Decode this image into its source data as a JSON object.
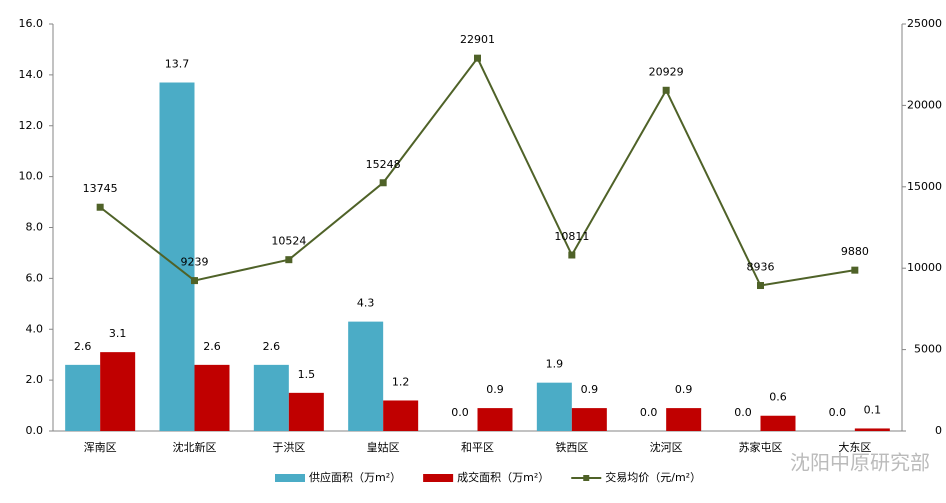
{
  "chart_data": {
    "type": "bar",
    "categories": [
      "浑南区",
      "沈北新区",
      "于洪区",
      "皇姑区",
      "和平区",
      "铁西区",
      "沈河区",
      "苏家屯区",
      "大东区"
    ],
    "series": [
      {
        "name": "供应面积（万m²）",
        "type": "bar",
        "color": "#4bacc6",
        "values": [
          2.6,
          13.7,
          2.6,
          4.3,
          0,
          1.9,
          0,
          0,
          0
        ],
        "value_labels": [
          "2.6",
          "13.7",
          "2.6",
          "4.3",
          "0.0",
          "1.9",
          "0.0",
          "0.0",
          "0.0"
        ]
      },
      {
        "name": "成交面积（万m²）",
        "type": "bar",
        "color": "#c00000",
        "values": [
          3.1,
          2.6,
          1.5,
          1.2,
          0.9,
          0.9,
          0.9,
          0.6,
          0.1
        ],
        "value_labels": [
          "3.1",
          "2.6",
          "1.5",
          "1.2",
          "0.9",
          "0.9",
          "0.9",
          "0.6",
          "0.1"
        ]
      },
      {
        "name": "交易均价（元/m²）",
        "type": "line",
        "axis": "y2",
        "color": "#4f6228",
        "values": [
          13745,
          9239,
          10524,
          15248,
          22901,
          10811,
          20929,
          8936,
          9880
        ]
      }
    ],
    "ylim": [
      0,
      16
    ],
    "yticks": [
      {
        "value": 0,
        "label": "0.0"
      },
      {
        "value": 2,
        "label": "2.0"
      },
      {
        "value": 4,
        "label": "4.0"
      },
      {
        "value": 6,
        "label": "6.0"
      },
      {
        "value": 8,
        "label": "8.0"
      },
      {
        "value": 10,
        "label": "10.0"
      },
      {
        "value": 12,
        "label": "12.0"
      },
      {
        "value": 14,
        "label": "14.0"
      },
      {
        "value": 16,
        "label": "16.0"
      }
    ],
    "y2lim": [
      0,
      25000
    ],
    "y2ticks": [
      0,
      5000,
      10000,
      15000,
      20000,
      25000
    ],
    "watermark": "沈阳中原研究部"
  }
}
